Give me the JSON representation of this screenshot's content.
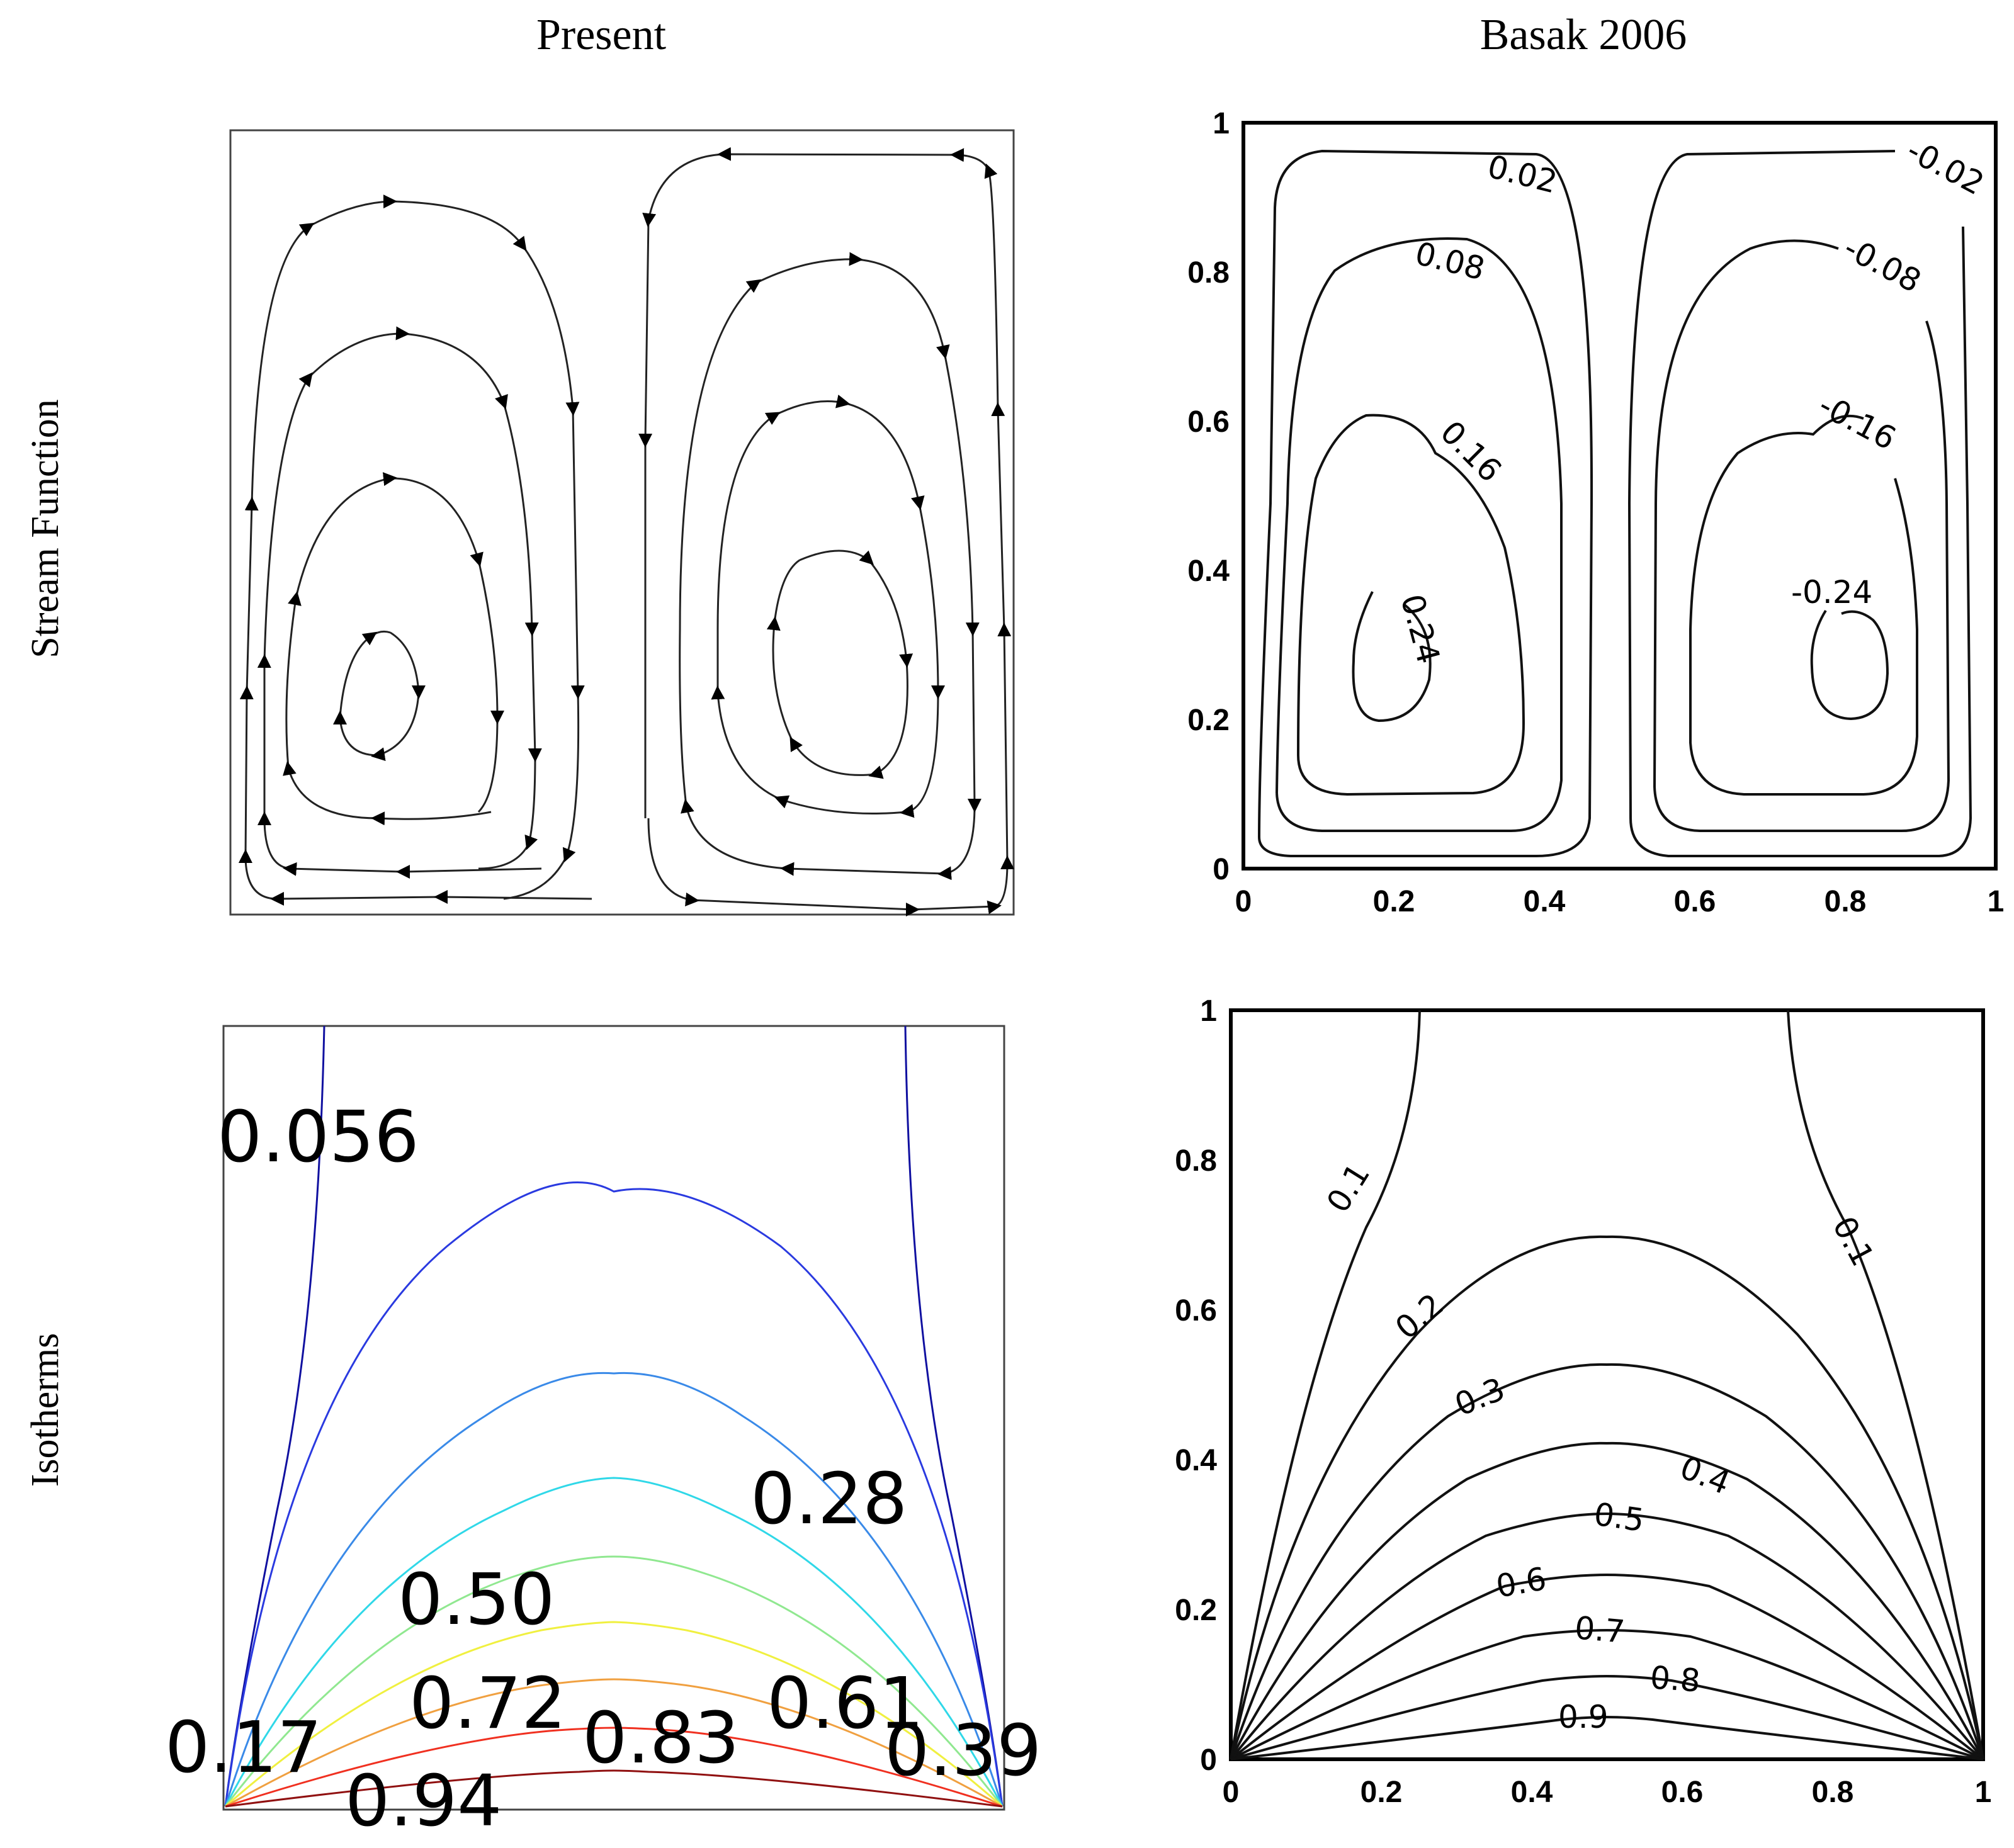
{
  "column_titles": {
    "present": "Present",
    "basak": "Basak 2006"
  },
  "row_titles": {
    "stream": "Stream Function",
    "isotherms": "Isotherms"
  },
  "chart_data": [
    {
      "panel": "present-stream",
      "type": "contour",
      "description_source": "streamlines with direction arrows, two counter-rotating cells",
      "cells": [
        {
          "rotation": "counterclockwise",
          "center": [
            0.19,
            0.25
          ]
        },
        {
          "rotation": "clockwise",
          "center": [
            0.81,
            0.25
          ]
        }
      ],
      "ticks_shown": false
    },
    {
      "panel": "basak-stream",
      "type": "contour",
      "xlim": [
        0,
        1
      ],
      "ylim": [
        0,
        1
      ],
      "xticks": [
        "0",
        "0.2",
        "0.4",
        "0.6",
        "0.8",
        "1"
      ],
      "yticks": [
        "0",
        "0.2",
        "0.4",
        "0.6",
        "0.8",
        "1"
      ],
      "contour_labels": [
        "0.02",
        "0.08",
        "0.16",
        "0.24",
        "-0.02",
        "-0.08",
        "-0.16",
        "-0.24"
      ],
      "levels": [
        0.02,
        0.08,
        0.16,
        0.24,
        -0.02,
        -0.08,
        -0.16,
        -0.24
      ]
    },
    {
      "panel": "present-isotherms",
      "type": "contour",
      "ticks_shown": false,
      "contour_labels": [
        "0.056",
        "0.28",
        "0.50",
        "0.72",
        "0.83",
        "0.61",
        "0.17",
        "0.39",
        "0.94"
      ],
      "levels": [
        0.056,
        0.17,
        0.28,
        0.39,
        0.5,
        0.61,
        0.72,
        0.83,
        0.94
      ],
      "level_colors": [
        "#1010a0",
        "#2a3ae0",
        "#3a8ae8",
        "#30d8e8",
        "#90e890",
        "#f0f040",
        "#f0a040",
        "#f03020",
        "#901010"
      ]
    },
    {
      "panel": "basak-isotherms",
      "type": "contour",
      "xlim": [
        0,
        1
      ],
      "ylim": [
        0,
        1
      ],
      "xticks": [
        "0",
        "0.2",
        "0.4",
        "0.6",
        "0.8",
        "1"
      ],
      "yticks": [
        "0",
        "0.2",
        "0.4",
        "0.6",
        "0.8",
        "1"
      ],
      "contour_labels": [
        "0.1",
        "0.1",
        "0.2",
        "0.3",
        "0.4",
        "0.5",
        "0.6",
        "0.7",
        "0.8",
        "0.9"
      ],
      "levels": [
        0.1,
        0.2,
        0.3,
        0.4,
        0.5,
        0.6,
        0.7,
        0.8,
        0.9
      ]
    }
  ]
}
